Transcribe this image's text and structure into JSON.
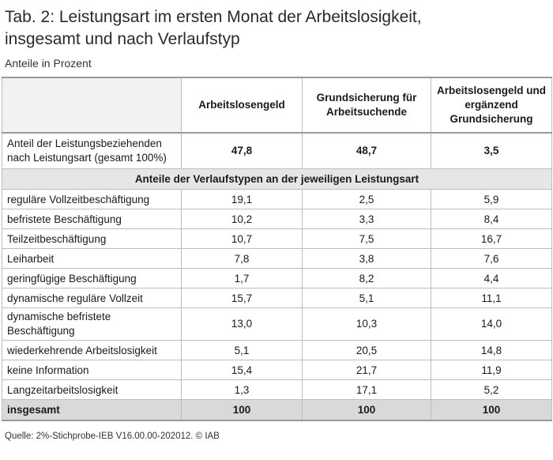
{
  "header": {
    "title_line1": "Tab. 2: Leistungsart im ersten Monat der Arbeitslosigkeit,",
    "title_line2": "insgesamt und nach Verlaufstyp",
    "subtitle": "Anteile in Prozent"
  },
  "table": {
    "columns": [
      "",
      "Arbeitslosengeld",
      "Grundsicherung für Arbeitsuchende",
      "Arbeitslosengeld und ergänzend Grundsicherung"
    ],
    "summary_row": {
      "label": "Anteil der Leistungsbeziehenden nach Leistungsart (gesamt 100%)",
      "values": [
        "47,8",
        "48,7",
        "3,5"
      ]
    },
    "section_label": "Anteile der Verlaufstypen an der jeweiligen Leistungsart",
    "rows": [
      {
        "label": "reguläre Vollzeitbeschäftigung",
        "values": [
          "19,1",
          "2,5",
          "5,9"
        ]
      },
      {
        "label": "befristete Beschäftigung",
        "values": [
          "10,2",
          "3,3",
          "8,4"
        ]
      },
      {
        "label": "Teilzeitbeschäftigung",
        "values": [
          "10,7",
          "7,5",
          "16,7"
        ]
      },
      {
        "label": "Leiharbeit",
        "values": [
          "7,8",
          "3,8",
          "7,6"
        ]
      },
      {
        "label": "geringfügige Beschäftigung",
        "values": [
          "1,7",
          "8,2",
          "4,4"
        ]
      },
      {
        "label": "dynamische reguläre Vollzeit",
        "values": [
          "15,7",
          "5,1",
          "11,1"
        ]
      },
      {
        "label": "dynamische befristete Beschäftigung",
        "values": [
          "13,0",
          "10,3",
          "14,0"
        ]
      },
      {
        "label": "wiederkehrende Arbeitslosigkeit",
        "values": [
          "5,1",
          "20,5",
          "14,8"
        ]
      },
      {
        "label": "keine Information",
        "values": [
          "15,4",
          "21,7",
          "11,9"
        ]
      },
      {
        "label": "Langzeitarbeitslosigkeit",
        "values": [
          "1,3",
          "17,1",
          "5,2"
        ]
      }
    ],
    "total_row": {
      "label": "insgesamt",
      "values": [
        "100",
        "100",
        "100"
      ]
    }
  },
  "footer": {
    "source": "Quelle: 2%-Stichprobe-IEB V16.00.00-202012. © IAB"
  }
}
